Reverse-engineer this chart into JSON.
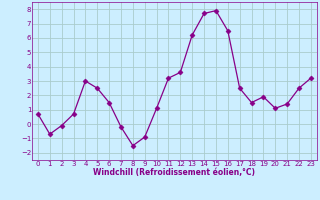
{
  "x": [
    0,
    1,
    2,
    3,
    4,
    5,
    6,
    7,
    8,
    9,
    10,
    11,
    12,
    13,
    14,
    15,
    16,
    17,
    18,
    19,
    20,
    21,
    22,
    23
  ],
  "y": [
    0.7,
    -0.7,
    -0.1,
    0.7,
    3.0,
    2.5,
    1.5,
    -0.2,
    -1.5,
    -0.9,
    1.1,
    3.2,
    3.6,
    6.2,
    7.7,
    7.9,
    6.5,
    2.5,
    1.5,
    1.9,
    1.1,
    1.4,
    2.5,
    3.2
  ],
  "line_color": "#880088",
  "marker": "D",
  "marker_size": 2.5,
  "bg_color": "#cceeff",
  "grid_color": "#aacccc",
  "xlabel": "Windchill (Refroidissement éolien,°C)",
  "xlabel_color": "#880088",
  "tick_color": "#880088",
  "ylim": [
    -2.5,
    8.5
  ],
  "xlim": [
    -0.5,
    23.5
  ],
  "yticks": [
    -2,
    -1,
    0,
    1,
    2,
    3,
    4,
    5,
    6,
    7,
    8
  ],
  "xticks": [
    0,
    1,
    2,
    3,
    4,
    5,
    6,
    7,
    8,
    9,
    10,
    11,
    12,
    13,
    14,
    15,
    16,
    17,
    18,
    19,
    20,
    21,
    22,
    23
  ]
}
